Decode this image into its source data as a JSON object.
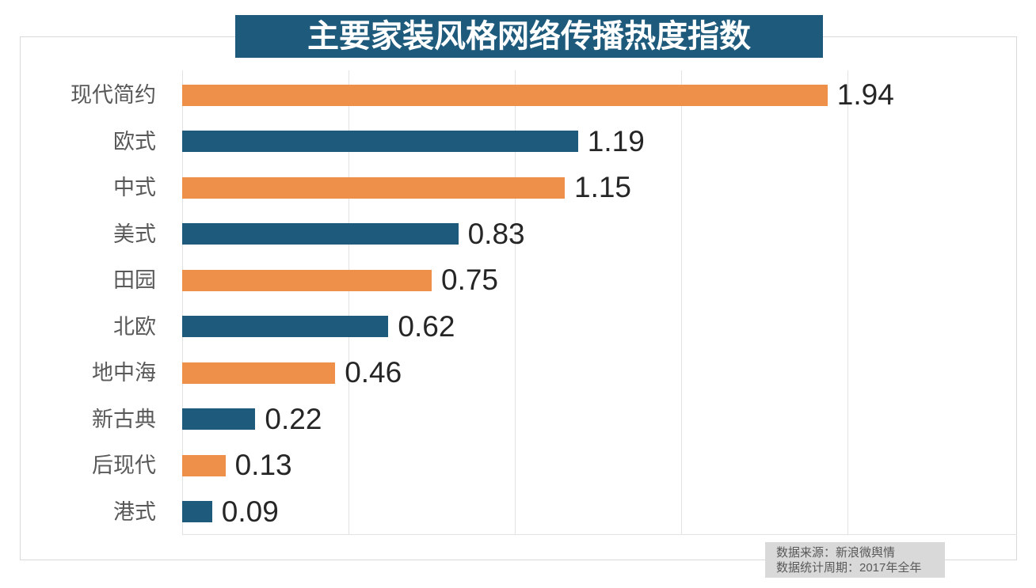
{
  "title_banner": {
    "text": "主要家装风格网络传播热度指数"
  },
  "chart_data": {
    "type": "bar",
    "orientation": "horizontal",
    "title": "主要家装风格网络传播热度指数",
    "categories": [
      "现代简约",
      "欧式",
      "中式",
      "美式",
      "田园",
      "北欧",
      "地中海",
      "新古典",
      "后现代",
      "港式"
    ],
    "values": [
      1.94,
      1.19,
      1.15,
      0.83,
      0.75,
      0.62,
      0.46,
      0.22,
      0.13,
      0.09
    ],
    "value_labels": [
      "1.94",
      "1.19",
      "1.15",
      "0.83",
      "0.75",
      "0.62",
      "0.46",
      "0.22",
      "0.13",
      "0.09"
    ],
    "bar_colors": [
      "#EE9049",
      "#1E5A7C",
      "#EE9049",
      "#1E5A7C",
      "#EE9049",
      "#1E5A7C",
      "#EE9049",
      "#1E5A7C",
      "#EE9049",
      "#1E5A7C"
    ],
    "xlim": [
      0,
      2.5
    ],
    "x_gridlines": [
      0,
      0.5,
      1.0,
      1.5,
      2.0
    ],
    "x_tick_labels_shown": false,
    "ylabel": "",
    "xlabel": "",
    "legend": "none",
    "grid": "vertical-only"
  },
  "source_note": {
    "line1": "数据来源：新浪微舆情",
    "line2": "数据统计周期：2017年全年"
  },
  "colors": {
    "orange": "#EE9049",
    "blue": "#1E5A7C",
    "banner_bg": "#1E5A7C",
    "banner_text": "#FFFFFF",
    "category_label": "#595959",
    "value_label": "#262626",
    "gridline": "#E2E2E2",
    "container_border": "#D9D9D9",
    "note_bg": "#D9D9D9",
    "note_text": "#595959",
    "background": "#FFFFFF"
  }
}
